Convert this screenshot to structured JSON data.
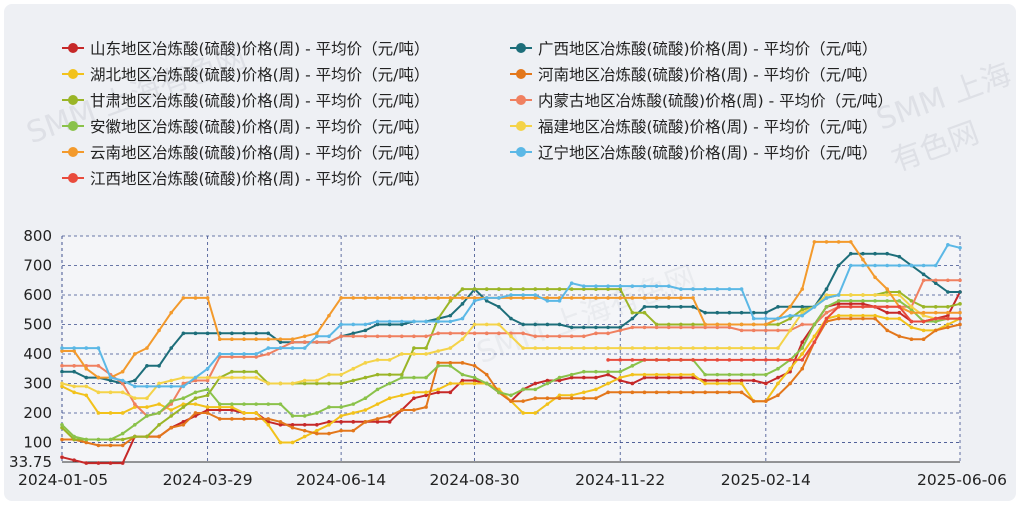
{
  "chart_data": {
    "type": "line",
    "x": [
      "2024-01-05",
      "2024-01-12",
      "2024-01-19",
      "2024-01-26",
      "2024-02-02",
      "2024-02-09",
      "2024-02-16",
      "2024-02-23",
      "2024-03-01",
      "2024-03-08",
      "2024-03-15",
      "2024-03-22",
      "2024-03-29",
      "2024-04-05",
      "2024-04-12",
      "2024-04-19",
      "2024-04-26",
      "2024-05-03",
      "2024-05-10",
      "2024-05-17",
      "2024-05-24",
      "2024-05-31",
      "2024-06-07",
      "2024-06-14",
      "2024-06-21",
      "2024-06-28",
      "2024-07-05",
      "2024-07-12",
      "2024-07-19",
      "2024-07-26",
      "2024-08-02",
      "2024-08-09",
      "2024-08-16",
      "2024-08-23",
      "2024-08-30",
      "2024-09-06",
      "2024-09-13",
      "2024-09-20",
      "2024-09-27",
      "2024-10-04",
      "2024-10-11",
      "2024-10-18",
      "2024-10-25",
      "2024-11-01",
      "2024-11-08",
      "2024-11-15",
      "2024-11-22",
      "2024-11-29",
      "2024-12-06",
      "2024-12-13",
      "2024-12-20",
      "2024-12-27",
      "2025-01-03",
      "2025-01-10",
      "2025-01-17",
      "2025-01-24",
      "2025-01-31",
      "2025-02-07",
      "2025-02-14",
      "2025-02-21",
      "2025-02-28",
      "2025-03-07",
      "2025-03-14",
      "2025-03-21",
      "2025-03-28",
      "2025-04-04",
      "2025-04-11",
      "2025-04-18",
      "2025-04-25",
      "2025-05-02",
      "2025-05-09",
      "2025-05-16",
      "2025-05-23",
      "2025-05-30",
      "2025-06-06"
    ],
    "x_tick_labels": [
      "2024-01-05",
      "2024-03-29",
      "2024-06-14",
      "2024-08-30",
      "2024-11-22",
      "2025-02-14",
      "2025-06-06"
    ],
    "x_tick_indices": [
      0,
      12,
      23,
      34,
      46,
      58,
      74
    ],
    "y_tick_labels": [
      "33.75",
      "100",
      "200",
      "300",
      "400",
      "500",
      "600",
      "700",
      "800"
    ],
    "y_tick_values": [
      33.75,
      100,
      200,
      300,
      400,
      500,
      600,
      700,
      800
    ],
    "ylim": [
      33.75,
      800
    ],
    "xlabel": "",
    "ylabel": "",
    "grid": true,
    "legend_position": "top",
    "series": [
      {
        "name": "山东地区冶炼酸(硫酸)价格(周) - 平均价（元/吨）",
        "color": "#c62828",
        "values": [
          50,
          40,
          30,
          30,
          30,
          30,
          120,
          120,
          120,
          150,
          170,
          190,
          210,
          210,
          210,
          200,
          200,
          170,
          160,
          160,
          160,
          160,
          170,
          170,
          170,
          170,
          170,
          170,
          210,
          250,
          260,
          270,
          270,
          310,
          310,
          300,
          270,
          240,
          280,
          300,
          310,
          310,
          320,
          320,
          320,
          330,
          310,
          300,
          320,
          320,
          320,
          320,
          320,
          310,
          310,
          310,
          310,
          310,
          300,
          320,
          340,
          440,
          500,
          560,
          570,
          570,
          570,
          560,
          540,
          540,
          510,
          510,
          520,
          530,
          610
        ]
      },
      {
        "name": "广西地区冶炼酸(硫酸)价格(周) - 平均价（元/吨）",
        "color": "#1d6e7a",
        "values": [
          340,
          340,
          320,
          320,
          310,
          300,
          310,
          360,
          360,
          420,
          470,
          470,
          470,
          470,
          470,
          470,
          470,
          470,
          440,
          440,
          440,
          440,
          440,
          460,
          470,
          480,
          500,
          500,
          500,
          510,
          510,
          520,
          530,
          570,
          620,
          580,
          560,
          520,
          500,
          500,
          500,
          500,
          490,
          490,
          490,
          490,
          490,
          520,
          560,
          560,
          560,
          560,
          560,
          540,
          540,
          540,
          540,
          540,
          540,
          560,
          560,
          560,
          560,
          620,
          700,
          740,
          740,
          740,
          740,
          730,
          700,
          670,
          640,
          610,
          610
        ]
      },
      {
        "name": "湖北地区冶炼酸(硫酸)价格(周) - 平均价（元/吨）",
        "color": "#f2c21b",
        "values": [
          290,
          270,
          260,
          200,
          200,
          200,
          220,
          220,
          230,
          210,
          230,
          230,
          220,
          220,
          220,
          200,
          200,
          160,
          100,
          100,
          120,
          140,
          160,
          190,
          200,
          210,
          230,
          250,
          260,
          270,
          270,
          280,
          300,
          300,
          300,
          300,
          280,
          240,
          200,
          200,
          230,
          260,
          260,
          270,
          280,
          300,
          320,
          330,
          330,
          330,
          330,
          330,
          330,
          300,
          300,
          300,
          300,
          240,
          240,
          300,
          350,
          400,
          460,
          520,
          530,
          530,
          530,
          530,
          520,
          520,
          490,
          480,
          480,
          500,
          520
        ]
      },
      {
        "name": "河南地区冶炼酸(硫酸)价格(周) - 平均价（元/吨）",
        "color": "#e3771b",
        "values": [
          110,
          110,
          100,
          90,
          90,
          90,
          120,
          120,
          120,
          150,
          160,
          200,
          200,
          180,
          180,
          180,
          180,
          180,
          170,
          150,
          140,
          130,
          130,
          140,
          140,
          170,
          180,
          190,
          210,
          210,
          220,
          370,
          370,
          370,
          360,
          330,
          270,
          240,
          240,
          250,
          250,
          250,
          250,
          250,
          250,
          270,
          270,
          270,
          270,
          270,
          270,
          270,
          270,
          270,
          270,
          270,
          270,
          240,
          240,
          260,
          300,
          350,
          440,
          510,
          520,
          520,
          520,
          520,
          480,
          460,
          450,
          450,
          480,
          490,
          500
        ]
      },
      {
        "name": "甘肃地区冶炼酸(硫酸)价格(周) - 平均价（元/吨）",
        "color": "#9ab527",
        "values": [
          150,
          110,
          110,
          110,
          110,
          110,
          120,
          120,
          160,
          190,
          220,
          250,
          260,
          320,
          340,
          340,
          340,
          300,
          300,
          300,
          300,
          300,
          300,
          300,
          310,
          320,
          330,
          330,
          330,
          420,
          420,
          520,
          580,
          620,
          620,
          620,
          620,
          620,
          620,
          620,
          620,
          620,
          620,
          620,
          620,
          620,
          620,
          540,
          540,
          500,
          500,
          500,
          500,
          500,
          500,
          500,
          500,
          500,
          500,
          500,
          520,
          550,
          560,
          590,
          600,
          600,
          600,
          600,
          610,
          610,
          580,
          560,
          560,
          560,
          570
        ]
      },
      {
        "name": "内蒙古地区冶炼酸(硫酸)价格(周) - 平均价（元/吨）",
        "color": "#f08060",
        "values": [
          360,
          360,
          360,
          360,
          330,
          300,
          230,
          190,
          200,
          230,
          300,
          310,
          310,
          390,
          390,
          390,
          390,
          400,
          420,
          440,
          440,
          440,
          440,
          460,
          460,
          460,
          460,
          460,
          460,
          460,
          460,
          470,
          470,
          470,
          470,
          470,
          470,
          470,
          470,
          460,
          460,
          460,
          460,
          460,
          470,
          470,
          480,
          490,
          490,
          490,
          490,
          490,
          490,
          490,
          490,
          490,
          480,
          480,
          480,
          480,
          480,
          500,
          500,
          540,
          560,
          560,
          560,
          560,
          560,
          560,
          560,
          650,
          650,
          650,
          650
        ]
      },
      {
        "name": "安徽地区冶炼酸(硫酸)价格(周) - 平均价（元/吨）",
        "color": "#8ac24a",
        "values": [
          160,
          120,
          110,
          110,
          110,
          130,
          160,
          190,
          200,
          240,
          250,
          270,
          280,
          230,
          230,
          230,
          230,
          230,
          230,
          190,
          190,
          200,
          220,
          220,
          230,
          250,
          280,
          300,
          320,
          320,
          320,
          360,
          360,
          330,
          320,
          300,
          270,
          260,
          280,
          280,
          300,
          320,
          330,
          340,
          340,
          340,
          340,
          360,
          380,
          380,
          380,
          380,
          380,
          330,
          330,
          330,
          330,
          330,
          330,
          350,
          380,
          420,
          500,
          560,
          580,
          580,
          580,
          580,
          580,
          580,
          550,
          510,
          510,
          520,
          520
        ]
      },
      {
        "name": "福建地区冶炼酸(硫酸)价格(周) - 平均价（元/吨）",
        "color": "#f4d349",
        "values": [
          300,
          290,
          290,
          270,
          270,
          270,
          250,
          250,
          300,
          310,
          320,
          320,
          320,
          320,
          320,
          320,
          320,
          300,
          300,
          300,
          310,
          310,
          330,
          330,
          350,
          370,
          380,
          380,
          400,
          400,
          400,
          410,
          420,
          450,
          500,
          500,
          500,
          460,
          420,
          420,
          420,
          420,
          420,
          420,
          420,
          420,
          420,
          420,
          420,
          420,
          420,
          420,
          420,
          420,
          420,
          420,
          420,
          420,
          420,
          420,
          480,
          540,
          560,
          600,
          600,
          600,
          600,
          600,
          600,
          600,
          560,
          530,
          520,
          520,
          520
        ]
      },
      {
        "name": "云南地区冶炼酸(硫酸)价格(周) - 平均价（元/吨）",
        "color": "#f39a2c",
        "values": [
          410,
          410,
          350,
          320,
          320,
          340,
          400,
          420,
          480,
          540,
          590,
          590,
          590,
          450,
          450,
          450,
          450,
          450,
          450,
          450,
          460,
          470,
          530,
          590,
          590,
          590,
          590,
          590,
          590,
          590,
          590,
          590,
          590,
          590,
          590,
          590,
          590,
          590,
          590,
          590,
          590,
          590,
          590,
          590,
          590,
          590,
          590,
          590,
          590,
          590,
          590,
          590,
          590,
          500,
          500,
          500,
          500,
          500,
          500,
          520,
          560,
          620,
          780,
          780,
          780,
          780,
          720,
          660,
          620,
          560,
          540,
          540,
          540,
          540,
          540
        ]
      },
      {
        "name": "辽宁地区冶炼酸(硫酸)价格(周) - 平均价（元/吨）",
        "color": "#5bb8e6",
        "values": [
          420,
          420,
          420,
          420,
          320,
          310,
          290,
          290,
          290,
          290,
          290,
          320,
          350,
          400,
          400,
          400,
          400,
          420,
          420,
          420,
          420,
          460,
          460,
          500,
          500,
          500,
          510,
          510,
          510,
          510,
          510,
          510,
          510,
          520,
          580,
          590,
          590,
          600,
          600,
          600,
          580,
          580,
          640,
          630,
          630,
          630,
          630,
          630,
          630,
          630,
          630,
          620,
          620,
          620,
          620,
          620,
          620,
          520,
          520,
          520,
          530,
          530,
          560,
          590,
          600,
          700,
          700,
          700,
          700,
          700,
          700,
          700,
          700,
          770,
          760
        ]
      },
      {
        "name": "江西地区冶炼酸(硫酸)价格(周) - 平均价（元/吨）",
        "color": "#e94b3c",
        "values": [
          null,
          null,
          null,
          null,
          null,
          null,
          null,
          null,
          null,
          null,
          null,
          null,
          null,
          null,
          null,
          null,
          null,
          null,
          null,
          null,
          null,
          null,
          null,
          null,
          null,
          null,
          null,
          null,
          null,
          null,
          null,
          null,
          null,
          null,
          null,
          null,
          null,
          null,
          null,
          null,
          null,
          null,
          null,
          null,
          null,
          380,
          380,
          380,
          380,
          380,
          380,
          380,
          380,
          380,
          380,
          380,
          380,
          380,
          380,
          380,
          380,
          380,
          440,
          520,
          560,
          560,
          560,
          560,
          560,
          560,
          510,
          510,
          520,
          520,
          520
        ]
      }
    ]
  },
  "watermark": "SMM 上海有色网"
}
